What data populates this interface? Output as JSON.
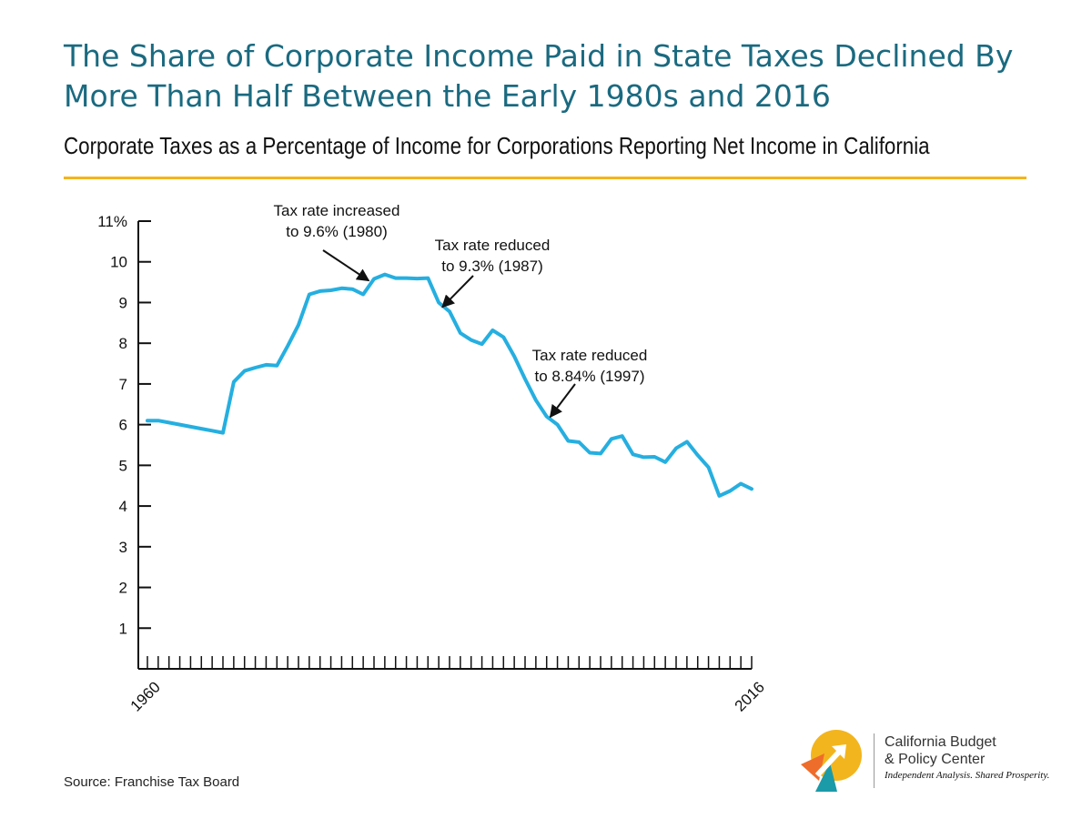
{
  "header": {
    "title": "The Share of Corporate Income Paid in State Taxes Declined By More Than Half Between the Early 1980s and 2016",
    "subtitle": "Corporate Taxes as a Percentage of Income for Corporations Reporting Net Income in California"
  },
  "source": "Source: Franchise Tax Board",
  "logo": {
    "line1": "California Budget",
    "line2": "& Policy Center",
    "tagline": "Independent Analysis. Shared Prosperity."
  },
  "colors": {
    "title": "#1a6a80",
    "line": "#25afe0",
    "rule": "#f3b51d",
    "logo_yellow": "#f3b51d",
    "logo_orange": "#ef6d2a",
    "logo_teal": "#1b9aa8"
  },
  "chart_data": {
    "type": "line",
    "title": "Corporate Taxes as a Percentage of Income for Corporations Reporting Net Income in California",
    "xlabel": "",
    "ylabel": "",
    "xlim": [
      1960,
      2016
    ],
    "ylim": [
      0,
      11
    ],
    "yticks": [
      {
        "value": 1,
        "label": "1"
      },
      {
        "value": 2,
        "label": "2"
      },
      {
        "value": 3,
        "label": "3"
      },
      {
        "value": 4,
        "label": "4"
      },
      {
        "value": 5,
        "label": "5"
      },
      {
        "value": 6,
        "label": "6"
      },
      {
        "value": 7,
        "label": "7"
      },
      {
        "value": 8,
        "label": "8"
      },
      {
        "value": 9,
        "label": "9"
      },
      {
        "value": 10,
        "label": "10"
      },
      {
        "value": 11,
        "label": "11%"
      }
    ],
    "xtick_labels": [
      {
        "value": 1960,
        "label": "1960"
      },
      {
        "value": 2016,
        "label": "2016"
      }
    ],
    "grid": false,
    "series": [
      {
        "x": [
          1960,
          1961,
          1962,
          1963,
          1964,
          1965,
          1966,
          1967,
          1968,
          1969,
          1970,
          1971,
          1972,
          1973,
          1974,
          1975,
          1976,
          1977,
          1978,
          1979,
          1980,
          1981,
          1982,
          1983,
          1984,
          1985,
          1986,
          1987,
          1988,
          1989,
          1990,
          1991,
          1992,
          1993,
          1994,
          1995,
          1996,
          1997,
          1998,
          1999,
          2000,
          2001,
          2002,
          2003,
          2004,
          2005,
          2006,
          2007,
          2008,
          2009,
          2010,
          2011,
          2012,
          2013,
          2014,
          2015,
          2016
        ],
        "values": [
          6.1,
          6.1,
          6.05,
          6.0,
          5.95,
          5.9,
          5.85,
          5.8,
          7.05,
          7.32,
          7.4,
          7.47,
          7.45,
          7.93,
          8.45,
          9.2,
          9.28,
          9.3,
          9.35,
          9.33,
          9.2,
          9.58,
          9.69,
          9.6,
          9.6,
          9.59,
          9.6,
          9.0,
          8.78,
          8.25,
          8.08,
          7.98,
          8.32,
          8.15,
          7.68,
          7.12,
          6.6,
          6.2,
          6.0,
          5.6,
          5.57,
          5.31,
          5.29,
          5.65,
          5.72,
          5.27,
          5.2,
          5.21,
          5.08,
          5.42,
          5.58,
          5.25,
          4.95,
          4.25,
          4.37,
          4.55,
          4.42
        ]
      }
    ],
    "annotations": [
      {
        "lines": [
          "Tax rate increased",
          "to 9.6% (1980)"
        ],
        "target": [
          1980,
          9.45
        ]
      },
      {
        "lines": [
          "Tax rate reduced",
          "to 9.3% (1987)"
        ],
        "target": [
          1987,
          8.8
        ]
      },
      {
        "lines": [
          "Tax rate reduced",
          "to 8.84% (1997)"
        ],
        "target": [
          1997,
          6.1
        ]
      }
    ]
  }
}
